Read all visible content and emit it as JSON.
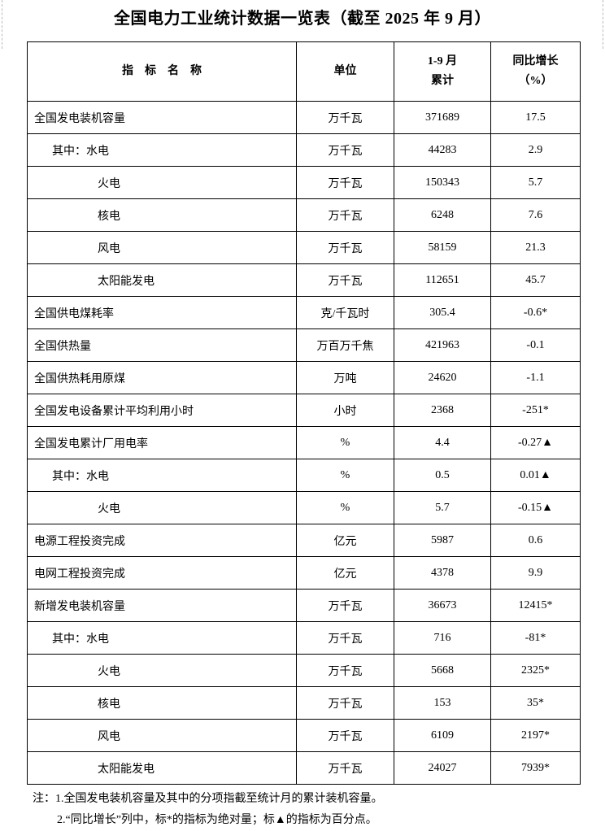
{
  "title": "全国电力工业统计数据一览表（截至 2025 年 9 月）",
  "headers": {
    "name": "指　标　名　称",
    "unit": "单位",
    "cum_line1": "1-9 月",
    "cum_line2": "累计",
    "yoy_line1": "同比增长",
    "yoy_line2": "（%）"
  },
  "rows": [
    {
      "name": "全国发电装机容量",
      "level": 0,
      "unit": "万千瓦",
      "value": "371689",
      "yoy": "17.5"
    },
    {
      "name": "其中：水电",
      "level": 1,
      "unit": "万千瓦",
      "value": "44283",
      "yoy": "2.9"
    },
    {
      "name": "火电",
      "level": 2,
      "unit": "万千瓦",
      "value": "150343",
      "yoy": "5.7"
    },
    {
      "name": "核电",
      "level": 2,
      "unit": "万千瓦",
      "value": "6248",
      "yoy": "7.6"
    },
    {
      "name": "风电",
      "level": 2,
      "unit": "万千瓦",
      "value": "58159",
      "yoy": "21.3"
    },
    {
      "name": "太阳能发电",
      "level": 2,
      "unit": "万千瓦",
      "value": "112651",
      "yoy": "45.7"
    },
    {
      "name": "全国供电煤耗率",
      "level": 0,
      "unit": "克/千瓦时",
      "value": "305.4",
      "yoy": "-0.6*"
    },
    {
      "name": "全国供热量",
      "level": 0,
      "unit": "万百万千焦",
      "value": "421963",
      "yoy": "-0.1"
    },
    {
      "name": "全国供热耗用原煤",
      "level": 0,
      "unit": "万吨",
      "value": "24620",
      "yoy": "-1.1"
    },
    {
      "name": "全国发电设备累计平均利用小时",
      "level": 0,
      "unit": "小时",
      "value": "2368",
      "yoy": "-251*"
    },
    {
      "name": "全国发电累计厂用电率",
      "level": 0,
      "unit": "%",
      "value": "4.4",
      "yoy": "-0.27▲"
    },
    {
      "name": "其中：水电",
      "level": 1,
      "unit": "%",
      "value": "0.5",
      "yoy": "0.01▲"
    },
    {
      "name": "火电",
      "level": 2,
      "unit": "%",
      "value": "5.7",
      "yoy": "-0.15▲"
    },
    {
      "name": "电源工程投资完成",
      "level": 0,
      "unit": "亿元",
      "value": "5987",
      "yoy": "0.6"
    },
    {
      "name": "电网工程投资完成",
      "level": 0,
      "unit": "亿元",
      "value": "4378",
      "yoy": "9.9"
    },
    {
      "name": "新增发电装机容量",
      "level": 0,
      "unit": "万千瓦",
      "value": "36673",
      "yoy": "12415*"
    },
    {
      "name": "其中：水电",
      "level": 1,
      "unit": "万千瓦",
      "value": "716",
      "yoy": "-81*"
    },
    {
      "name": "火电",
      "level": 2,
      "unit": "万千瓦",
      "value": "5668",
      "yoy": "2325*"
    },
    {
      "name": "核电",
      "level": 2,
      "unit": "万千瓦",
      "value": "153",
      "yoy": "35*"
    },
    {
      "name": "风电",
      "level": 2,
      "unit": "万千瓦",
      "value": "6109",
      "yoy": "2197*"
    },
    {
      "name": "太阳能发电",
      "level": 2,
      "unit": "万千瓦",
      "value": "24027",
      "yoy": "7939*"
    }
  ],
  "notes": [
    "注：1.全国发电装机容量及其中的分项指截至统计月的累计装机容量。",
    "2.“同比增长”列中，标*的指标为绝对量；标▲的指标为百分点。"
  ]
}
